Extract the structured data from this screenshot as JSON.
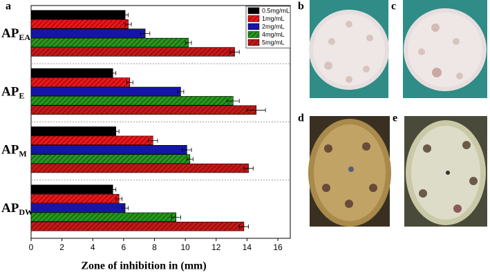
{
  "chart_data": {
    "type": "barh",
    "panel_label": "a",
    "xlabel": "Zone of inhibition in (mm)",
    "categories": [
      {
        "main": "AP",
        "sub": "EA"
      },
      {
        "main": "AP",
        "sub": "E"
      },
      {
        "main": "AP",
        "sub": "M"
      },
      {
        "main": "AP",
        "sub": "DW"
      }
    ],
    "series": [
      {
        "name": "0.5mg/mL",
        "color": "#000000",
        "hatch": false,
        "values": [
          6.1,
          5.3,
          5.5,
          5.3
        ],
        "errors": [
          0.2,
          0.2,
          0.2,
          0.2
        ]
      },
      {
        "name": "1mg/mL",
        "color": "#e8161a",
        "hatch": true,
        "values": [
          6.3,
          6.4,
          7.9,
          5.7
        ],
        "errors": [
          0.2,
          0.2,
          0.3,
          0.2
        ]
      },
      {
        "name": "2mg/mL",
        "color": "#1515a8",
        "hatch": false,
        "values": [
          7.4,
          9.7,
          10.1,
          6.1
        ],
        "errors": [
          0.3,
          0.2,
          0.3,
          0.2
        ]
      },
      {
        "name": "4mg/mL",
        "color": "#1e9a1e",
        "hatch": true,
        "values": [
          10.2,
          13.1,
          10.3,
          9.4
        ],
        "errors": [
          0.2,
          0.4,
          0.2,
          0.3
        ]
      },
      {
        "name": "5mg/mL",
        "color": "#c41818",
        "hatch": true,
        "values": [
          13.2,
          14.6,
          14.1,
          13.8
        ],
        "errors": [
          0.3,
          0.6,
          0.3,
          0.3
        ]
      }
    ],
    "xlim": [
      0,
      16
    ],
    "xticks": [
      0,
      2,
      4,
      6,
      8,
      10,
      12,
      14,
      16
    ],
    "legend": "upper right"
  },
  "photos": [
    {
      "label": "b"
    },
    {
      "label": "c"
    },
    {
      "label": "d"
    },
    {
      "label": "e"
    }
  ]
}
